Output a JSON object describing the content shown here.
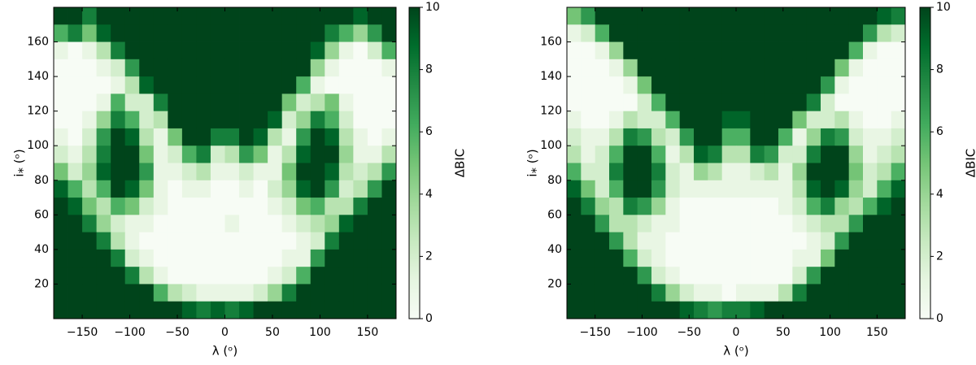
{
  "chart_data": [
    {
      "type": "heatmap",
      "xlabel": "λ (ᵒ)",
      "ylabel": "i⁎ (ᵒ)",
      "colorbar_label": "ΔBIC",
      "xlim": [
        -180,
        180
      ],
      "ylim": [
        0,
        180
      ],
      "xticks": [
        {
          "value": -150,
          "label": "−150"
        },
        {
          "value": -100,
          "label": "−100"
        },
        {
          "value": -50,
          "label": "−50"
        },
        0,
        50,
        100,
        150
      ],
      "yticks": [
        20,
        40,
        60,
        80,
        100,
        120,
        140,
        160
      ],
      "clim": [
        0,
        10
      ],
      "cticks": [
        0,
        2,
        4,
        6,
        8,
        10
      ],
      "colormap": [
        "#f7fcf5",
        "#e5f5e0",
        "#c7e9c0",
        "#a1d99b",
        "#74c476",
        "#41ab5d",
        "#238b45",
        "#006d2c",
        "#00441b"
      ],
      "xbins": [
        -180,
        -165,
        -150,
        -135,
        -120,
        -105,
        -90,
        -75,
        -60,
        -45,
        -30,
        -15,
        0,
        15,
        30,
        45,
        60,
        75,
        90,
        105,
        120,
        135,
        150,
        165,
        180
      ],
      "ybins": [
        180,
        170,
        160,
        150,
        140,
        130,
        120,
        110,
        100,
        90,
        80,
        70,
        60,
        50,
        40,
        30,
        20,
        10,
        0
      ],
      "z": [
        [
          10,
          10,
          8,
          10,
          10,
          10,
          10,
          10,
          10,
          10,
          10,
          10,
          10,
          10,
          10,
          10,
          10,
          10,
          10,
          10,
          10,
          9,
          10,
          10
        ],
        [
          6,
          8,
          5,
          9,
          10,
          10,
          10,
          10,
          10,
          10,
          10,
          10,
          10,
          10,
          10,
          10,
          10,
          10,
          10,
          8,
          6,
          4,
          7,
          10
        ],
        [
          1,
          0,
          1,
          3,
          8,
          10,
          10,
          10,
          10,
          10,
          10,
          10,
          10,
          10,
          10,
          10,
          10,
          10,
          9,
          4,
          1,
          0,
          2,
          6
        ],
        [
          0,
          0,
          0,
          1,
          2,
          7,
          10,
          10,
          10,
          10,
          10,
          10,
          10,
          10,
          10,
          10,
          10,
          10,
          4,
          1,
          0,
          0,
          0,
          1
        ],
        [
          0,
          0,
          0,
          0,
          1,
          3,
          9,
          10,
          10,
          10,
          10,
          10,
          10,
          10,
          10,
          10,
          10,
          6,
          1,
          0,
          0,
          0,
          0,
          0
        ],
        [
          0,
          0,
          0,
          1,
          6,
          2,
          2,
          8,
          10,
          10,
          10,
          10,
          10,
          10,
          10,
          10,
          5,
          2,
          3,
          5,
          1,
          0,
          0,
          0
        ],
        [
          0,
          0,
          1,
          4,
          8,
          6,
          2,
          3,
          10,
          10,
          10,
          10,
          10,
          10,
          10,
          9,
          2,
          4,
          8,
          6,
          2,
          0,
          0,
          0
        ],
        [
          1,
          0,
          2,
          7,
          10,
          9,
          3,
          1,
          5,
          10,
          10,
          8,
          8,
          10,
          9,
          3,
          1,
          7,
          10,
          9,
          3,
          1,
          0,
          1
        ],
        [
          2,
          1,
          3,
          8,
          10,
          10,
          5,
          1,
          2,
          6,
          8,
          2,
          3,
          7,
          5,
          1,
          3,
          9,
          10,
          10,
          4,
          1,
          1,
          3
        ],
        [
          5,
          2,
          4,
          9,
          10,
          10,
          7,
          1,
          1,
          2,
          3,
          1,
          1,
          2,
          1,
          1,
          5,
          10,
          10,
          9,
          3,
          2,
          3,
          7
        ],
        [
          9,
          6,
          3,
          6,
          10,
          9,
          5,
          1,
          0,
          1,
          1,
          0,
          0,
          1,
          0,
          2,
          4,
          9,
          10,
          7,
          2,
          3,
          7,
          10
        ],
        [
          10,
          9,
          5,
          3,
          6,
          5,
          2,
          1,
          0,
          0,
          0,
          0,
          0,
          0,
          0,
          1,
          2,
          5,
          6,
          3,
          3,
          8,
          10,
          10
        ],
        [
          10,
          10,
          8,
          4,
          2,
          1,
          1,
          0,
          0,
          0,
          0,
          0,
          1,
          0,
          0,
          0,
          1,
          2,
          3,
          4,
          9,
          10,
          10,
          10
        ],
        [
          10,
          10,
          10,
          8,
          3,
          1,
          0,
          0,
          0,
          0,
          0,
          0,
          0,
          0,
          0,
          0,
          0,
          1,
          2,
          8,
          10,
          10,
          10,
          10
        ],
        [
          10,
          10,
          10,
          10,
          8,
          2,
          1,
          0,
          0,
          0,
          0,
          0,
          0,
          0,
          0,
          0,
          1,
          1,
          7,
          10,
          10,
          10,
          10,
          10
        ],
        [
          10,
          10,
          10,
          10,
          10,
          8,
          3,
          1,
          0,
          0,
          0,
          0,
          0,
          0,
          0,
          1,
          2,
          6,
          10,
          10,
          10,
          10,
          10,
          10
        ],
        [
          10,
          10,
          10,
          10,
          10,
          10,
          10,
          6,
          3,
          2,
          1,
          1,
          1,
          1,
          2,
          4,
          8,
          10,
          10,
          10,
          10,
          10,
          10,
          10
        ],
        [
          10,
          10,
          10,
          10,
          10,
          10,
          10,
          10,
          10,
          9,
          8,
          9,
          8,
          9,
          10,
          10,
          10,
          10,
          10,
          10,
          10,
          10,
          10,
          10
        ]
      ]
    },
    {
      "type": "heatmap",
      "xlabel": "λ (ᵒ)",
      "ylabel": "i⁎ (ᵒ)",
      "colorbar_label": "ΔBIC",
      "xlim": [
        -180,
        180
      ],
      "ylim": [
        0,
        180
      ],
      "xticks": [
        {
          "value": -150,
          "label": "−150"
        },
        {
          "value": -100,
          "label": "−100"
        },
        {
          "value": -50,
          "label": "−50"
        },
        0,
        50,
        100,
        150
      ],
      "yticks": [
        20,
        40,
        60,
        80,
        100,
        120,
        140,
        160
      ],
      "clim": [
        0,
        10
      ],
      "cticks": [
        0,
        2,
        4,
        6,
        8,
        10
      ],
      "colormap": [
        "#f7fcf5",
        "#e5f5e0",
        "#c7e9c0",
        "#a1d99b",
        "#74c476",
        "#41ab5d",
        "#238b45",
        "#006d2c",
        "#00441b"
      ],
      "xbins": [
        -180,
        -165,
        -150,
        -135,
        -120,
        -105,
        -90,
        -75,
        -60,
        -45,
        -30,
        -15,
        0,
        15,
        30,
        45,
        60,
        75,
        90,
        105,
        120,
        135,
        150,
        165,
        180
      ],
      "ybins": [
        180,
        170,
        160,
        150,
        140,
        130,
        120,
        110,
        100,
        90,
        80,
        70,
        60,
        50,
        40,
        30,
        20,
        10,
        0
      ],
      "z": [
        [
          5,
          7,
          10,
          10,
          10,
          10,
          10,
          10,
          10,
          10,
          10,
          10,
          10,
          10,
          10,
          10,
          10,
          10,
          10,
          10,
          10,
          10,
          9,
          8
        ],
        [
          1,
          2,
          6,
          10,
          10,
          10,
          10,
          10,
          10,
          10,
          10,
          10,
          10,
          10,
          10,
          10,
          10,
          10,
          10,
          10,
          10,
          7,
          3,
          2
        ],
        [
          0,
          0,
          1,
          4,
          10,
          10,
          10,
          10,
          10,
          10,
          10,
          10,
          10,
          10,
          10,
          10,
          10,
          10,
          10,
          10,
          6,
          1,
          0,
          0
        ],
        [
          0,
          0,
          0,
          1,
          4,
          10,
          10,
          10,
          10,
          10,
          10,
          10,
          10,
          10,
          10,
          10,
          10,
          10,
          10,
          5,
          1,
          0,
          0,
          0
        ],
        [
          0,
          0,
          0,
          0,
          1,
          5,
          10,
          10,
          10,
          10,
          10,
          10,
          10,
          10,
          10,
          10,
          10,
          10,
          7,
          1,
          0,
          0,
          0,
          0
        ],
        [
          0,
          0,
          0,
          0,
          0,
          2,
          6,
          10,
          10,
          10,
          10,
          10,
          10,
          10,
          10,
          10,
          10,
          8,
          2,
          0,
          0,
          0,
          0,
          0
        ],
        [
          1,
          0,
          0,
          1,
          3,
          2,
          2,
          6,
          10,
          10,
          10,
          9,
          9,
          10,
          10,
          10,
          5,
          2,
          2,
          3,
          1,
          0,
          0,
          1
        ],
        [
          2,
          1,
          1,
          3,
          8,
          7,
          3,
          2,
          7,
          10,
          10,
          6,
          6,
          10,
          10,
          6,
          1,
          4,
          8,
          7,
          2,
          1,
          1,
          2
        ],
        [
          3,
          1,
          2,
          6,
          10,
          10,
          6,
          1,
          3,
          9,
          8,
          3,
          3,
          8,
          7,
          2,
          2,
          8,
          10,
          10,
          4,
          1,
          2,
          3
        ],
        [
          6,
          2,
          2,
          8,
          10,
          10,
          8,
          2,
          1,
          4,
          3,
          1,
          1,
          2,
          3,
          1,
          4,
          10,
          10,
          10,
          5,
          2,
          3,
          6
        ],
        [
          9,
          5,
          2,
          6,
          10,
          10,
          7,
          2,
          1,
          1,
          1,
          1,
          1,
          1,
          1,
          1,
          3,
          9,
          10,
          9,
          4,
          2,
          6,
          9
        ],
        [
          10,
          8,
          4,
          3,
          8,
          7,
          4,
          1,
          0,
          0,
          0,
          0,
          0,
          0,
          0,
          1,
          2,
          6,
          8,
          4,
          3,
          6,
          9,
          10
        ],
        [
          10,
          10,
          7,
          3,
          3,
          2,
          1,
          1,
          0,
          0,
          0,
          0,
          0,
          0,
          0,
          0,
          1,
          2,
          3,
          3,
          7,
          10,
          10,
          10
        ],
        [
          10,
          10,
          10,
          7,
          3,
          1,
          1,
          0,
          0,
          0,
          0,
          0,
          0,
          0,
          0,
          0,
          0,
          1,
          2,
          7,
          10,
          10,
          10,
          10
        ],
        [
          10,
          10,
          10,
          10,
          6,
          2,
          1,
          0,
          0,
          0,
          0,
          0,
          0,
          0,
          0,
          0,
          1,
          1,
          5,
          10,
          10,
          10,
          10,
          10
        ],
        [
          10,
          10,
          10,
          10,
          10,
          7,
          2,
          1,
          0,
          0,
          0,
          0,
          0,
          0,
          0,
          0,
          2,
          7,
          10,
          10,
          10,
          10,
          10,
          10
        ],
        [
          10,
          10,
          10,
          10,
          10,
          10,
          8,
          4,
          2,
          1,
          1,
          0,
          1,
          1,
          1,
          3,
          8,
          10,
          10,
          10,
          10,
          10,
          10,
          10
        ],
        [
          10,
          10,
          10,
          10,
          10,
          10,
          10,
          10,
          9,
          8,
          7,
          8,
          8,
          9,
          10,
          10,
          10,
          10,
          10,
          10,
          10,
          10,
          10,
          10
        ]
      ]
    }
  ]
}
